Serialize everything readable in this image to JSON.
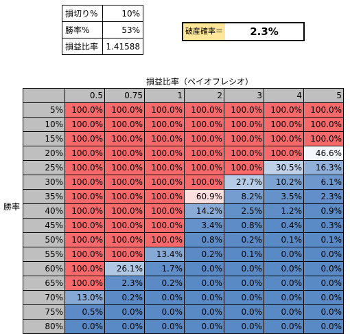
{
  "params": [
    {
      "label": "損切り%",
      "value": "10%"
    },
    {
      "label": "勝率%",
      "value": "53%"
    },
    {
      "label": "損益比率",
      "value": "1.41588"
    }
  ],
  "ruin": {
    "label": "破産確率＝",
    "value": "2.3%"
  },
  "table": {
    "x_title": "損益比率（ペイオフレシオ）",
    "y_title": "勝率",
    "columns": [
      "0.5",
      "0.75",
      "1",
      "2",
      "3",
      "4",
      "5"
    ],
    "rows": [
      {
        "label": "5%",
        "cells": [
          "100.0%",
          "100.0%",
          "100.0%",
          "100.0%",
          "100.0%",
          "100.0%",
          "100.0%"
        ]
      },
      {
        "label": "10%",
        "cells": [
          "100.0%",
          "100.0%",
          "100.0%",
          "100.0%",
          "100.0%",
          "100.0%",
          "100.0%"
        ]
      },
      {
        "label": "15%",
        "cells": [
          "100.0%",
          "100.0%",
          "100.0%",
          "100.0%",
          "100.0%",
          "100.0%",
          "100.0%"
        ]
      },
      {
        "label": "20%",
        "cells": [
          "100.0%",
          "100.0%",
          "100.0%",
          "100.0%",
          "100.0%",
          "100.0%",
          "46.6%"
        ]
      },
      {
        "label": "25%",
        "cells": [
          "100.0%",
          "100.0%",
          "100.0%",
          "100.0%",
          "100.0%",
          "30.5%",
          "16.3%"
        ]
      },
      {
        "label": "30%",
        "cells": [
          "100.0%",
          "100.0%",
          "100.0%",
          "100.0%",
          "27.7%",
          "10.2%",
          "6.1%"
        ]
      },
      {
        "label": "35%",
        "cells": [
          "100.0%",
          "100.0%",
          "100.0%",
          "60.9%",
          "8.2%",
          "3.5%",
          "2.3%"
        ]
      },
      {
        "label": "40%",
        "cells": [
          "100.0%",
          "100.0%",
          "100.0%",
          "14.2%",
          "2.5%",
          "1.2%",
          "0.9%"
        ]
      },
      {
        "label": "45%",
        "cells": [
          "100.0%",
          "100.0%",
          "100.0%",
          "3.4%",
          "0.8%",
          "0.4%",
          "0.3%"
        ]
      },
      {
        "label": "50%",
        "cells": [
          "100.0%",
          "100.0%",
          "100.0%",
          "0.8%",
          "0.2%",
          "0.1%",
          "0.1%"
        ]
      },
      {
        "label": "55%",
        "cells": [
          "100.0%",
          "100.0%",
          "13.4%",
          "0.2%",
          "0.1%",
          "0.0%",
          "0.0%"
        ]
      },
      {
        "label": "60%",
        "cells": [
          "100.0%",
          "26.1%",
          "1.7%",
          "0.0%",
          "0.0%",
          "0.0%",
          "0.0%"
        ]
      },
      {
        "label": "65%",
        "cells": [
          "100.0%",
          "2.3%",
          "0.2%",
          "0.0%",
          "0.0%",
          "0.0%",
          "0.0%"
        ]
      },
      {
        "label": "70%",
        "cells": [
          "13.0%",
          "0.2%",
          "0.0%",
          "0.0%",
          "0.0%",
          "0.0%",
          "0.0%"
        ]
      },
      {
        "label": "75%",
        "cells": [
          "0.5%",
          "0.0%",
          "0.0%",
          "0.0%",
          "0.0%",
          "0.0%",
          "0.0%"
        ]
      },
      {
        "label": "80%",
        "cells": [
          "0.0%",
          "0.0%",
          "0.0%",
          "0.0%",
          "0.0%",
          "0.0%",
          "0.0%"
        ]
      }
    ]
  },
  "colors": {
    "high": "#f8696b",
    "mid": "#ffffff",
    "low": "#5a8ac6",
    "header": "#bfbfbf",
    "ruin_label": "#ffe699"
  }
}
